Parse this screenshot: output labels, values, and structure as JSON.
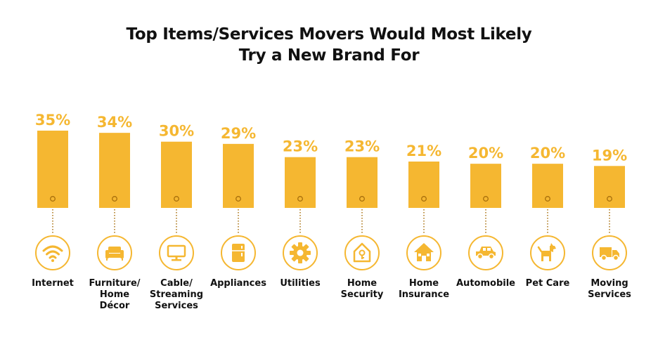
{
  "title_lines": [
    "Top Items/Services Movers Would Most Likely",
    "Try a New Brand For"
  ],
  "colors": {
    "bar": "#F5B731",
    "dot_stroke": "#A86F0C",
    "icon": "#F5B731",
    "text": "#111111"
  },
  "chart_data": {
    "type": "bar",
    "title": "Top Items/Services Movers Would Most Likely Try a New Brand For",
    "categories": [
      "Internet",
      "Furniture/ Home Décor",
      "Cable/ Streaming Services",
      "Appliances",
      "Utilities",
      "Home Security",
      "Home Insurance",
      "Automobile",
      "Pet Care",
      "Moving Services"
    ],
    "category_lines": [
      [
        "Internet"
      ],
      [
        "Furniture/",
        "Home",
        "Décor"
      ],
      [
        "Cable/",
        "Streaming",
        "Services"
      ],
      [
        "Appliances"
      ],
      [
        "Utilities"
      ],
      [
        "Home",
        "Security"
      ],
      [
        "Home",
        "Insurance"
      ],
      [
        "Automobile"
      ],
      [
        "Pet Care"
      ],
      [
        "Moving",
        "Services"
      ]
    ],
    "values": [
      35,
      34,
      30,
      29,
      23,
      23,
      21,
      20,
      20,
      19
    ],
    "value_labels": [
      "35%",
      "34%",
      "30%",
      "29%",
      "23%",
      "23%",
      "21%",
      "20%",
      "20%",
      "19%"
    ],
    "icons": [
      "wifi-icon",
      "sofa-icon",
      "tv-icon",
      "refrigerator-icon",
      "gear-icon",
      "home-security-icon",
      "house-icon",
      "car-icon",
      "dog-icon",
      "moving-truck-icon"
    ],
    "unit": "%",
    "ylim": [
      0,
      35
    ],
    "xlabel": "",
    "ylabel": "",
    "grid": false,
    "legend": "none"
  }
}
